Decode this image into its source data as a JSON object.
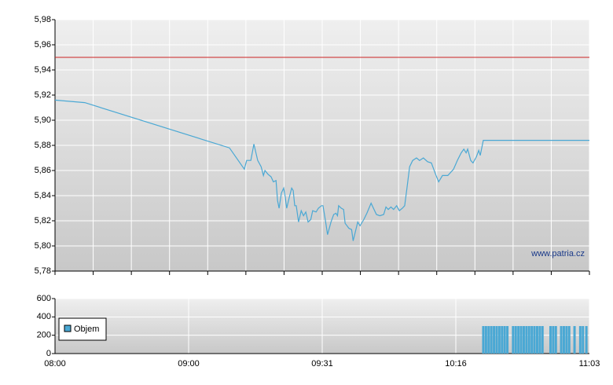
{
  "chart_data": [
    {
      "type": "line",
      "x": [
        0,
        7.8,
        45.7,
        49.6,
        50.2,
        51.3,
        52.1,
        53.1,
        54,
        54.6,
        55,
        55.8,
        56.6,
        57.2,
        57.9,
        58.3,
        58.7,
        59.3,
        59.9,
        60.3,
        60.7,
        61.4,
        62,
        62.4,
        62.8,
        63.2,
        63.8,
        64.5,
        65.1,
        65.7,
        66.3,
        67,
        67.5,
        68.4,
        69,
        69.8,
        70.2,
        70.8,
        71.4,
        72.3,
        73,
        73.6,
        74,
        74.3,
        75,
        75.6,
        76,
        77,
        77.7,
        78.1,
        78.9,
        79.3,
        79.9,
        80.9,
        81.7,
        82.8,
        84.2,
        85.1,
        86.1,
        86.7,
        87.3,
        88,
        88.7,
        89.5,
        90.2,
        91,
        91.6,
        92.2,
        92.9,
        93.7,
        94.7,
        95.5,
        96.5,
        97.6,
        98.6,
        99.7,
        100.5,
        101.5,
        102.9,
        104.4,
        105.4,
        106.4,
        107.1,
        107.7,
        108.1,
        108.9,
        109.5,
        110.4,
        111,
        111.4,
        112.2,
        140
      ],
      "values": [
        5.916,
        5.914,
        5.878,
        5.861,
        5.868,
        5.868,
        5.881,
        5.868,
        5.863,
        5.856,
        5.86,
        5.857,
        5.855,
        5.851,
        5.852,
        5.836,
        5.83,
        5.842,
        5.846,
        5.839,
        5.83,
        5.839,
        5.846,
        5.844,
        5.832,
        5.832,
        5.819,
        5.828,
        5.824,
        5.827,
        5.819,
        5.821,
        5.828,
        5.827,
        5.83,
        5.832,
        5.832,
        5.821,
        5.809,
        5.819,
        5.825,
        5.826,
        5.824,
        5.832,
        5.83,
        5.829,
        5.818,
        5.814,
        5.813,
        5.804,
        5.814,
        5.819,
        5.816,
        5.821,
        5.826,
        5.834,
        5.825,
        5.824,
        5.825,
        5.831,
        5.829,
        5.831,
        5.829,
        5.832,
        5.828,
        5.83,
        5.832,
        5.846,
        5.863,
        5.868,
        5.87,
        5.868,
        5.87,
        5.867,
        5.866,
        5.857,
        5.851,
        5.856,
        5.856,
        5.861,
        5.868,
        5.874,
        5.877,
        5.874,
        5.877,
        5.868,
        5.866,
        5.871,
        5.876,
        5.872,
        5.884,
        5.884
      ],
      "color": "#4aa8d4",
      "reference_line": 5.95,
      "reference_color": "#cc2222",
      "xlim": [
        0,
        140
      ],
      "ylim": [
        5.78,
        5.98
      ],
      "yticks": [
        {
          "value": 5.78,
          "label": "5,78"
        },
        {
          "value": 5.8,
          "label": "5,80"
        },
        {
          "value": 5.82,
          "label": "5,82"
        },
        {
          "value": 5.84,
          "label": "5,84"
        },
        {
          "value": 5.86,
          "label": "5,86"
        },
        {
          "value": 5.88,
          "label": "5,88"
        },
        {
          "value": 5.9,
          "label": "5,90"
        },
        {
          "value": 5.92,
          "label": "5,92"
        },
        {
          "value": 5.94,
          "label": "5,94"
        },
        {
          "value": 5.96,
          "label": "5,96"
        },
        {
          "value": 5.98,
          "label": "5,98"
        }
      ],
      "annotation": "www.patria.cz"
    },
    {
      "type": "bar",
      "x": [
        112.2,
        112.9,
        113.6,
        114.3,
        115,
        115.7,
        116.4,
        117.1,
        117.8,
        118.5,
        120,
        120.7,
        121.4,
        122.1,
        122.8,
        123.5,
        124.2,
        124.9,
        125.6,
        126.3,
        127,
        127.7,
        129.8,
        130.5,
        131.2,
        132.6,
        133.3,
        134,
        134.7,
        136.1,
        137.6,
        138.3,
        139.2
      ],
      "series": [
        {
          "name": "Objem",
          "color": "#4aa8d4",
          "values": [
            300,
            300,
            300,
            300,
            300,
            300,
            300,
            300,
            300,
            300,
            300,
            300,
            300,
            300,
            300,
            300,
            300,
            300,
            300,
            300,
            300,
            300,
            300,
            300,
            300,
            300,
            300,
            300,
            300,
            300,
            300,
            300,
            300
          ]
        }
      ],
      "xlim": [
        0,
        140
      ],
      "xticks": [
        {
          "value": 0,
          "label": "08:00"
        },
        {
          "value": 35,
          "label": "09:00"
        },
        {
          "value": 70,
          "label": "09:31"
        },
        {
          "value": 105,
          "label": "10:16"
        },
        {
          "value": 140,
          "label": "11:03"
        }
      ],
      "ylim": [
        0,
        600
      ],
      "yticks": [
        0,
        200,
        400,
        600
      ]
    }
  ]
}
